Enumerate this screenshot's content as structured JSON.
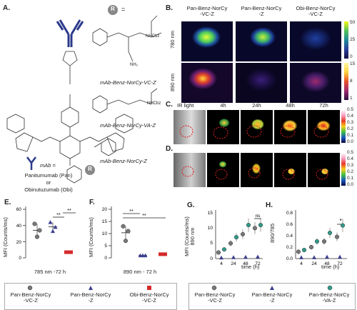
{
  "panels": {
    "A": "A.",
    "B": "B.",
    "C": "C.",
    "D": "D.",
    "E": "E.",
    "F": "F.",
    "G": "G.",
    "H": "H."
  },
  "panelA": {
    "r_symbol": "R",
    "equals": "=",
    "nhcbz": "NHCbz",
    "nh2": "NH₂",
    "nhcbz2": "NHCbz",
    "label_vcz": "mAb-Benz-NorCy-VC-Z",
    "label_vaz": "mAb-Benz-NorCy-VA-Z",
    "label_z": "mAb-Benz-NorCy-Z",
    "mab_eq": "mAb =",
    "antibody1": "Panitumumab (Pan)",
    "or": "or",
    "antibody2": "Obinutuzumab (Obi)"
  },
  "panelB": {
    "col1": "Pan-Benz-NorCy\n-VC-Z",
    "col2": "Pan-Benz-NorCy\n-Z",
    "col3": "Obi-Benz-NorCy\n-VC-Z",
    "row1": "780 nm",
    "row2": "890 nm",
    "cb1_ticks": [
      "50",
      "25",
      "0"
    ],
    "cb2_ticks": [
      "15",
      "8",
      "1"
    ]
  },
  "panelC": {
    "ir": "IR light",
    "times": [
      "4h",
      "24h",
      "48h",
      "72h"
    ],
    "cb_ticks": [
      "0.5",
      "0.4",
      "0.3",
      "0.2",
      "0.1",
      "0.0"
    ]
  },
  "panelD": {
    "cb_ticks": [
      "0.5",
      "0.4",
      "0.3",
      "0.2",
      "0.1",
      "0.0"
    ]
  },
  "panelE": {
    "ylabel": "MFI (Counts/ms)",
    "xlabel": "785 nm -72 h",
    "sig1": "**",
    "sig2": "**",
    "ticks": [
      "60",
      "40",
      "20",
      "0"
    ]
  },
  "panelF": {
    "ylabel": "MFI (Counts/ms)",
    "xlabel": "890 nm - 72 h",
    "sig1": "**",
    "sig2": "**",
    "ticks": [
      "20",
      "15",
      "10",
      "5",
      "0"
    ]
  },
  "panelG": {
    "ylabel": "MFI (Counts/ms)\n890 nm",
    "xlabel": "time (h)",
    "ns": "ns",
    "xticks": [
      "4",
      "24",
      "48",
      "72"
    ],
    "yticks": [
      "15",
      "10",
      "5",
      "0"
    ]
  },
  "panelH": {
    "ylabel": "890/785",
    "xlabel": "time (h)",
    "sig": "*",
    "xticks": [
      "4",
      "24",
      "48",
      "72"
    ],
    "yticks": [
      "0.8",
      "0.6",
      "0.4",
      "0.2",
      "0.0"
    ]
  },
  "legend1": {
    "items": [
      "Pan-Benz-NorCy\n-VC-Z",
      "Pan-Benz-NorCy\n-Z",
      "Obi-Benz-NorCy\n-VC-Z"
    ]
  },
  "legend2": {
    "items": [
      "Pan-Benz-NorCy\n-VC-Z",
      "Pan-Benz-NorCy\n-Z",
      "Pan-Benz-NorCy\n-VA-Z"
    ]
  },
  "colors": {
    "vcz": "#777777",
    "z": "#3b3f8f",
    "obi": "#d42a2a",
    "vaz": "#2f9a88",
    "mab_blue": "#2c3a8c"
  },
  "chart_data": [
    {
      "type": "scatter",
      "panel": "E",
      "title": "",
      "xlabel": "785 nm -72 h",
      "ylabel": "MFI (Counts/ms)",
      "ylim": [
        0,
        60
      ],
      "series": [
        {
          "name": "Pan-Benz-NorCy-VC-Z",
          "values": [
            42,
            26,
            34
          ]
        },
        {
          "name": "Pan-Benz-NorCy-Z",
          "values": [
            44,
            33,
            38
          ]
        },
        {
          "name": "Obi-Benz-NorCy-VC-Z",
          "values": [
            7,
            7,
            7
          ]
        }
      ]
    },
    {
      "type": "scatter",
      "panel": "F",
      "title": "",
      "xlabel": "890 nm - 72 h",
      "ylabel": "MFI (Counts/ms)",
      "ylim": [
        0,
        20
      ],
      "series": [
        {
          "name": "Pan-Benz-NorCy-VC-Z",
          "values": [
            13,
            7,
            11
          ]
        },
        {
          "name": "Pan-Benz-NorCy-Z",
          "values": [
            1,
            1,
            1
          ]
        },
        {
          "name": "Obi-Benz-NorCy-VC-Z",
          "values": [
            1.5,
            1.5,
            1.5
          ]
        }
      ]
    },
    {
      "type": "scatter",
      "panel": "G",
      "title": "",
      "xlabel": "time (h)",
      "ylabel": "MFI (Counts/ms) 890 nm",
      "x": [
        4,
        24,
        48,
        72
      ],
      "ylim": [
        0,
        15
      ],
      "series": [
        {
          "name": "Pan-Benz-NorCy-VC-Z",
          "values": [
            2,
            5,
            8,
            10
          ]
        },
        {
          "name": "Pan-Benz-NorCy-Z",
          "values": [
            0.3,
            0.4,
            0.5,
            0.6
          ]
        },
        {
          "name": "Pan-Benz-NorCy-VA-Z",
          "values": [
            3,
            7,
            11,
            11
          ]
        }
      ]
    },
    {
      "type": "scatter",
      "panel": "H",
      "title": "",
      "xlabel": "time (h)",
      "ylabel": "890/785",
      "x": [
        4,
        24,
        48,
        72
      ],
      "ylim": [
        0,
        0.8
      ],
      "series": [
        {
          "name": "Pan-Benz-NorCy-VC-Z",
          "values": [
            0.12,
            0.2,
            0.3,
            0.38
          ]
        },
        {
          "name": "Pan-Benz-NorCy-Z",
          "values": [
            0.02,
            0.02,
            0.03,
            0.03
          ]
        },
        {
          "name": "Pan-Benz-NorCy-VA-Z",
          "values": [
            0.15,
            0.3,
            0.45,
            0.58
          ]
        }
      ]
    }
  ]
}
